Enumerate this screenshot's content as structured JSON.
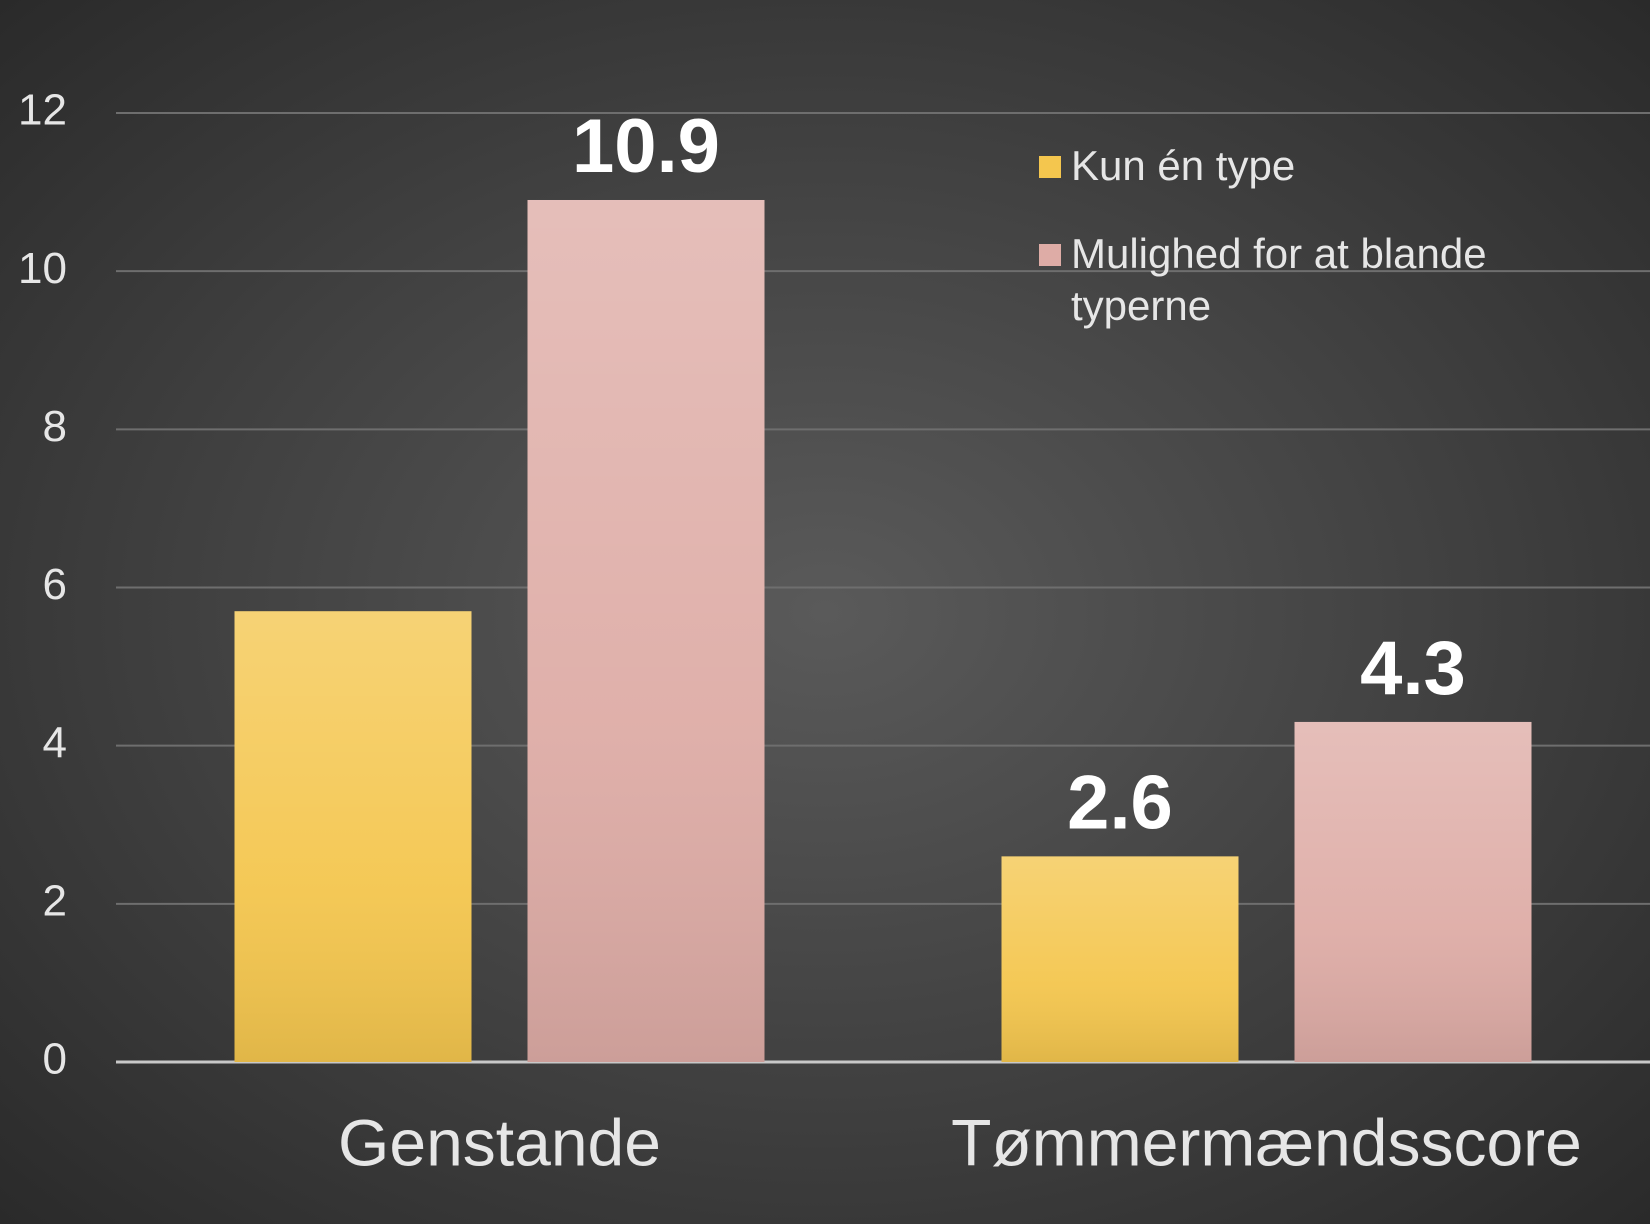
{
  "chart_data": {
    "type": "bar",
    "categories": [
      "Genstande",
      "Tømmermændsscore"
    ],
    "series": [
      {
        "name": "Kun én type",
        "color": "#f4c64e",
        "values": [
          5.7,
          2.6
        ],
        "value_labels": [
          null,
          "2.6"
        ]
      },
      {
        "name": "Mulighed for at blande typerne",
        "color": "#deaca6",
        "values": [
          10.9,
          4.3
        ],
        "value_labels": [
          "10.9",
          "4.3"
        ]
      }
    ],
    "ylim": [
      0,
      12
    ],
    "yticks": [
      0,
      2,
      4,
      6,
      8,
      10,
      12
    ],
    "grid": true,
    "legend": "top-right"
  }
}
